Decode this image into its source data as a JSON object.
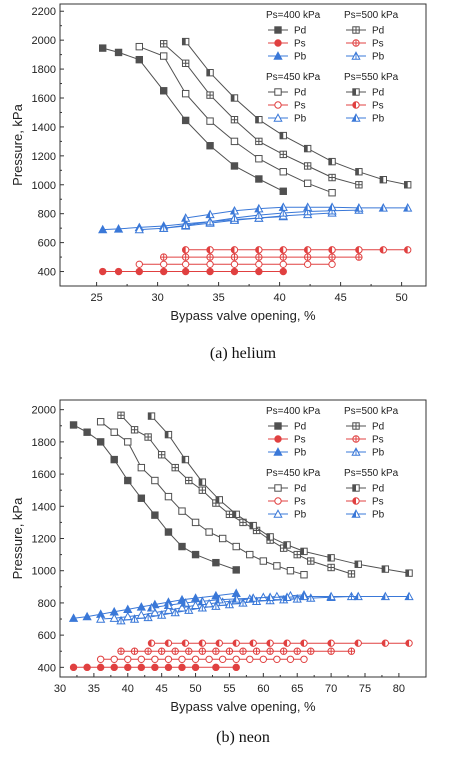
{
  "colors": {
    "Pd": "#505050",
    "Ps": "#e04040",
    "Pb": "#3a78d8"
  },
  "chart_data": [
    {
      "type": "scatter",
      "caption": "(a)  helium",
      "xlabel": "Bypass valve opening, %",
      "ylabel": "Pressure, kPa",
      "xlim": [
        22,
        52
      ],
      "ylim": [
        300,
        2250
      ],
      "xticks": [
        25,
        30,
        35,
        40,
        45,
        50
      ],
      "yticks": [
        400,
        600,
        800,
        1000,
        1200,
        1400,
        1600,
        1800,
        2000,
        2200
      ],
      "legend_groups": [
        "Ps=400 kPa",
        "Ps=500 kPa",
        "Ps=450 kPa",
        "Ps=550 kPa"
      ],
      "legend_items": [
        "Pd",
        "Ps",
        "Pb"
      ],
      "groups": [
        {
          "name": "Ps=400 kPa",
          "marker": "solid",
          "Pd": {
            "x": [
              25.5,
              26.8,
              28.5,
              30.5,
              32.3,
              34.3,
              36.3,
              38.3,
              40.3
            ],
            "y": [
              1945,
              1915,
              1865,
              1650,
              1445,
              1270,
              1130,
              1040,
              955
            ]
          },
          "Ps": {
            "x": [
              25.5,
              26.8,
              28.5,
              30.5,
              32.3,
              34.3,
              36.3,
              38.3,
              40.3
            ],
            "y": [
              400,
              400,
              400,
              400,
              400,
              400,
              400,
              400,
              400
            ]
          },
          "Pb": {
            "x": [
              25.5,
              26.8,
              28.5,
              30.5,
              32.3,
              34.3,
              36.3,
              38.3,
              40.3
            ],
            "y": [
              690,
              695,
              705,
              715,
              730,
              745,
              760,
              770,
              780
            ]
          }
        },
        {
          "name": "Ps=450 kPa",
          "marker": "open",
          "Pd": {
            "x": [
              28.5,
              30.5,
              32.3,
              34.3,
              36.3,
              38.3,
              40.3,
              42.3,
              44.3
            ],
            "y": [
              1955,
              1890,
              1630,
              1440,
              1300,
              1180,
              1090,
              1010,
              945
            ]
          },
          "Ps": {
            "x": [
              28.5,
              30.5,
              32.3,
              34.3,
              36.3,
              38.3,
              40.3,
              42.3,
              44.3
            ],
            "y": [
              450,
              450,
              450,
              450,
              450,
              450,
              450,
              450,
              450
            ]
          },
          "Pb": {
            "x": [
              28.5,
              30.5,
              32.3,
              34.3,
              36.3,
              38.3,
              40.3,
              42.3,
              44.3
            ],
            "y": [
              690,
              700,
              715,
              735,
              755,
              770,
              785,
              795,
              805
            ]
          }
        },
        {
          "name": "Ps=500 kPa",
          "marker": "cross",
          "Pd": {
            "x": [
              30.5,
              32.3,
              34.3,
              36.3,
              38.3,
              40.3,
              42.3,
              44.3,
              46.5
            ],
            "y": [
              1975,
              1840,
              1620,
              1450,
              1300,
              1210,
              1130,
              1050,
              1000
            ]
          },
          "Ps": {
            "x": [
              30.5,
              32.3,
              34.3,
              36.3,
              38.3,
              40.3,
              42.3,
              44.3,
              46.5
            ],
            "y": [
              500,
              500,
              500,
              500,
              500,
              500,
              500,
              500,
              500
            ]
          },
          "Pb": {
            "x": [
              30.5,
              32.3,
              34.3,
              36.3,
              38.3,
              40.3,
              42.3,
              44.3,
              46.5
            ],
            "y": [
              700,
              720,
              745,
              770,
              790,
              805,
              815,
              820,
              825
            ]
          }
        },
        {
          "name": "Ps=550 kPa",
          "marker": "half",
          "Pd": {
            "x": [
              32.3,
              34.3,
              36.3,
              38.3,
              40.3,
              42.3,
              44.3,
              46.5,
              48.5,
              50.5
            ],
            "y": [
              1990,
              1775,
              1600,
              1450,
              1340,
              1250,
              1160,
              1090,
              1035,
              1000
            ]
          },
          "Ps": {
            "x": [
              32.3,
              34.3,
              36.3,
              38.3,
              40.3,
              42.3,
              44.3,
              46.5,
              48.5,
              50.5
            ],
            "y": [
              550,
              550,
              550,
              550,
              550,
              550,
              550,
              550,
              550,
              550
            ]
          },
          "Pb": {
            "x": [
              32.3,
              34.3,
              36.3,
              38.3,
              40.3,
              42.3,
              44.3,
              46.5,
              48.5,
              50.5
            ],
            "y": [
              770,
              795,
              820,
              835,
              845,
              845,
              845,
              840,
              840,
              840
            ]
          }
        }
      ]
    },
    {
      "type": "scatter",
      "caption": "(b)  neon",
      "xlabel": "Bypass valve opening, %",
      "ylabel": "Pressure, kPa",
      "xlim": [
        30,
        84
      ],
      "ylim": [
        340,
        2060
      ],
      "xticks": [
        30,
        35,
        40,
        45,
        50,
        55,
        60,
        65,
        70,
        75,
        80
      ],
      "yticks": [
        400,
        600,
        800,
        1000,
        1200,
        1400,
        1600,
        1800,
        2000
      ],
      "legend_groups": [
        "Ps=400 kPa",
        "Ps=500 kPa",
        "Ps=450 kPa",
        "Ps=550 kPa"
      ],
      "legend_items": [
        "Pd",
        "Ps",
        "Pb"
      ],
      "groups": [
        {
          "name": "Ps=400 kPa",
          "marker": "solid",
          "Pd": {
            "x": [
              32,
              34,
              36,
              38,
              40,
              42,
              44,
              46,
              48,
              50,
              53,
              56
            ],
            "y": [
              1905,
              1860,
              1800,
              1690,
              1560,
              1450,
              1345,
              1240,
              1150,
              1100,
              1050,
              1005
            ]
          },
          "Ps": {
            "x": [
              32,
              34,
              36,
              38,
              40,
              42,
              44,
              46,
              48,
              50,
              53,
              56
            ],
            "y": [
              400,
              400,
              400,
              400,
              400,
              400,
              400,
              400,
              400,
              400,
              400,
              400
            ]
          },
          "Pb": {
            "x": [
              32,
              34,
              36,
              38,
              40,
              42,
              44,
              46,
              48,
              50,
              53,
              56
            ],
            "y": [
              705,
              715,
              730,
              745,
              760,
              775,
              790,
              805,
              820,
              830,
              845,
              860
            ]
          }
        },
        {
          "name": "Ps=450 kPa",
          "marker": "open",
          "Pd": {
            "x": [
              36,
              38,
              40,
              42,
              44,
              46,
              48,
              50,
              52,
              54,
              56,
              58,
              60,
              62,
              64,
              66
            ],
            "y": [
              1925,
              1860,
              1800,
              1640,
              1560,
              1460,
              1370,
              1300,
              1240,
              1200,
              1150,
              1100,
              1060,
              1030,
              1000,
              975
            ]
          },
          "Ps": {
            "x": [
              36,
              38,
              40,
              42,
              44,
              46,
              48,
              50,
              52,
              54,
              56,
              58,
              60,
              62,
              64,
              66
            ],
            "y": [
              450,
              450,
              450,
              450,
              450,
              450,
              450,
              450,
              450,
              450,
              450,
              450,
              450,
              450,
              450,
              450
            ]
          },
          "Pb": {
            "x": [
              36,
              38,
              40,
              42,
              44,
              46,
              48,
              50,
              52,
              54,
              56,
              58,
              60,
              62,
              64,
              66
            ],
            "y": [
              700,
              705,
              715,
              725,
              740,
              755,
              770,
              785,
              795,
              805,
              815,
              825,
              835,
              840,
              845,
              850
            ]
          }
        },
        {
          "name": "Ps=500 kPa",
          "marker": "cross",
          "Pd": {
            "x": [
              39,
              41,
              43,
              45,
              47,
              49,
              51,
              53,
              55,
              57,
              59,
              61,
              63,
              65,
              67,
              70,
              73
            ],
            "y": [
              1965,
              1875,
              1830,
              1720,
              1640,
              1560,
              1500,
              1420,
              1350,
              1300,
              1250,
              1190,
              1140,
              1100,
              1060,
              1020,
              980
            ]
          },
          "Ps": {
            "x": [
              39,
              41,
              43,
              45,
              47,
              49,
              51,
              53,
              55,
              57,
              59,
              61,
              63,
              65,
              67,
              70,
              73
            ],
            "y": [
              500,
              500,
              500,
              500,
              500,
              500,
              500,
              500,
              500,
              500,
              500,
              500,
              500,
              500,
              500,
              500,
              500
            ]
          },
          "Pb": {
            "x": [
              39,
              41,
              43,
              45,
              47,
              49,
              51,
              53,
              55,
              57,
              59,
              61,
              63,
              65,
              67,
              70,
              73
            ],
            "y": [
              690,
              700,
              710,
              725,
              740,
              755,
              770,
              780,
              790,
              800,
              810,
              815,
              820,
              825,
              830,
              835,
              840
            ]
          }
        },
        {
          "name": "Ps=550 kPa",
          "marker": "half",
          "Pd": {
            "x": [
              43.5,
              46,
              48.5,
              51,
              53.5,
              56,
              58.5,
              61,
              63.5,
              66,
              70,
              74,
              78,
              81.5
            ],
            "y": [
              1960,
              1845,
              1690,
              1550,
              1440,
              1350,
              1280,
              1210,
              1160,
              1120,
              1080,
              1040,
              1010,
              985
            ]
          },
          "Ps": {
            "x": [
              43.5,
              46,
              48.5,
              51,
              53.5,
              56,
              58.5,
              61,
              63.5,
              66,
              70,
              74,
              78,
              81.5
            ],
            "y": [
              550,
              550,
              550,
              550,
              550,
              550,
              550,
              550,
              550,
              550,
              550,
              550,
              550,
              550
            ]
          },
          "Pb": {
            "x": [
              43.5,
              46,
              48.5,
              51,
              53.5,
              56,
              58.5,
              61,
              63.5,
              66,
              70,
              74,
              78,
              81.5
            ],
            "y": [
              770,
              785,
              800,
              810,
              820,
              825,
              830,
              835,
              835,
              840,
              840,
              840,
              840,
              840
            ]
          }
        }
      ]
    }
  ]
}
